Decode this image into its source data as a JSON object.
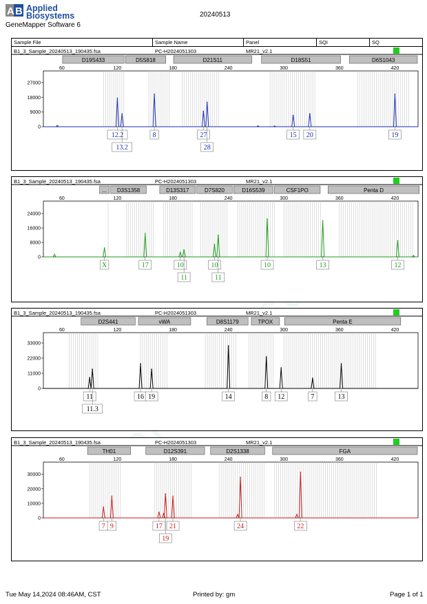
{
  "header": {
    "logo_line1": "Applied",
    "logo_line2": "Biosystems",
    "software": "GeneMapper Software 6",
    "date": "20240513",
    "columns": [
      "Sample File",
      "Sample Name",
      "Panel",
      "SQI",
      "SQ"
    ]
  },
  "footer": {
    "timestamp": "Tue May 14,2024 08:46AM, CST",
    "printed_by": "Printed by: gm",
    "page": "Page 1 of 1"
  },
  "watermark": "www.proteck.com.cn",
  "colors": {
    "blue": "#1a2fb0",
    "green": "#1c9a1c",
    "black": "#000000",
    "red": "#c81818",
    "quality": "#22cc22",
    "bins": "#c8c8c8",
    "marker_fill": "#bfbfbf"
  },
  "chart_data": [
    {
      "type": "line",
      "dye": "blue",
      "sample_file": "B1_3_Sample_20240513_190435.fsa",
      "sample_name": "PC-H2024051303",
      "panel": "MR21_v2.1",
      "xlim": [
        40,
        445
      ],
      "x_ticks": [
        60,
        120,
        180,
        240,
        300,
        360,
        420
      ],
      "ylim": [
        0,
        32000
      ],
      "y_ticks": [
        0,
        9000,
        18000,
        27000
      ],
      "markers": [
        {
          "name": "D19S433",
          "start": 60,
          "end": 128
        },
        {
          "name": "D5S818",
          "start": 128,
          "end": 173
        },
        {
          "name": "D21S11",
          "start": 180,
          "end": 266
        },
        {
          "name": "D18S51",
          "start": 275,
          "end": 362
        },
        {
          "name": "D6S1043",
          "start": 370,
          "end": 445
        }
      ],
      "bins": [
        [
          105,
          128
        ],
        [
          154,
          176
        ],
        [
          190,
          230
        ],
        [
          285,
          335
        ],
        [
          380,
          437
        ]
      ],
      "peaks": [
        {
          "x": 120,
          "height": 17500,
          "label": "12.2",
          "row": 0
        },
        {
          "x": 125,
          "height": 8000,
          "label": "13.2",
          "row": 1
        },
        {
          "x": 160,
          "height": 20000,
          "label": "8",
          "row": 0
        },
        {
          "x": 213,
          "height": 9500,
          "label": "27",
          "row": 0
        },
        {
          "x": 217,
          "height": 15000,
          "label": "28",
          "row": 1
        },
        {
          "x": 310,
          "height": 7000,
          "label": "15",
          "row": 0
        },
        {
          "x": 328,
          "height": 8000,
          "label": "20",
          "row": 0
        },
        {
          "x": 420,
          "height": 20000,
          "label": "19",
          "row": 0
        }
      ],
      "noise": [
        [
          55,
          800
        ],
        [
          272,
          600
        ],
        [
          290,
          500
        ]
      ]
    },
    {
      "type": "line",
      "dye": "green",
      "sample_file": "B1_3_Sample_20240513_190435.fsa",
      "sample_name": "PC-H2024051303",
      "panel": "MR21_v2.1",
      "xlim": [
        40,
        445
      ],
      "x_ticks": [
        60,
        120,
        180,
        240,
        300,
        360,
        420
      ],
      "ylim": [
        0,
        29000
      ],
      "y_ticks": [
        0,
        8000,
        16000,
        24000
      ],
      "markers": [
        {
          "name": "...",
          "start": 100,
          "end": 112
        },
        {
          "name": "D3S1358",
          "start": 112,
          "end": 152
        },
        {
          "name": "D13S317",
          "start": 165,
          "end": 205
        },
        {
          "name": "D7S820",
          "start": 205,
          "end": 245
        },
        {
          "name": "D16S539",
          "start": 245,
          "end": 289
        },
        {
          "name": "CSF1PO",
          "start": 289,
          "end": 340
        },
        {
          "name": "Penta D",
          "start": 347,
          "end": 447
        }
      ],
      "bins": [
        [
          110,
          112
        ],
        [
          130,
          160
        ],
        [
          170,
          202
        ],
        [
          210,
          240
        ],
        [
          250,
          290
        ],
        [
          300,
          340
        ],
        [
          360,
          440
        ]
      ],
      "peaks": [
        {
          "x": 106,
          "height": 5000,
          "label": "X",
          "row": 0
        },
        {
          "x": 150,
          "height": 13000,
          "label": "17",
          "row": 0
        },
        {
          "x": 188,
          "height": 2500,
          "label": "10",
          "row": 0
        },
        {
          "x": 192,
          "height": 4000,
          "label": "11",
          "row": 1
        },
        {
          "x": 225,
          "height": 7000,
          "label": "10",
          "row": 0
        },
        {
          "x": 229,
          "height": 12000,
          "label": "11",
          "row": 1
        },
        {
          "x": 282,
          "height": 21000,
          "label": "10",
          "row": 0
        },
        {
          "x": 342,
          "height": 20000,
          "label": "13",
          "row": 0
        },
        {
          "x": 423,
          "height": 9000,
          "label": "12",
          "row": 0
        }
      ],
      "noise": [
        [
          52,
          1500
        ],
        [
          440,
          800
        ]
      ]
    },
    {
      "type": "line",
      "dye": "black",
      "sample_file": "B1_3_Sample_20240513_190435.fsa",
      "sample_name": "PC-H2024051303",
      "panel": "MR21_v2.1",
      "xlim": [
        40,
        445
      ],
      "x_ticks": [
        60,
        120,
        180,
        240,
        300,
        360,
        420
      ],
      "ylim": [
        0,
        38000
      ],
      "y_ticks": [
        0,
        11000,
        22000,
        33000
      ],
      "markers": [
        {
          "name": "D2S441",
          "start": 80,
          "end": 140
        },
        {
          "name": "vWA",
          "start": 142,
          "end": 200
        },
        {
          "name": "D8S1179",
          "start": 216,
          "end": 262
        },
        {
          "name": "TPOX",
          "start": 264,
          "end": 296
        },
        {
          "name": "Penta E",
          "start": 300,
          "end": 427
        }
      ],
      "bins": [
        [
          68,
          100
        ],
        [
          145,
          175
        ],
        [
          215,
          250
        ],
        [
          262,
          290
        ],
        [
          300,
          400
        ]
      ],
      "peaks": [
        {
          "x": 90,
          "height": 8000,
          "label": "11",
          "row": 0
        },
        {
          "x": 93,
          "height": 14000,
          "label": "11.3",
          "row": 1
        },
        {
          "x": 145,
          "height": 18000,
          "label": "16",
          "row": 0
        },
        {
          "x": 157,
          "height": 14000,
          "label": "19",
          "row": 0
        },
        {
          "x": 240,
          "height": 31000,
          "label": "14",
          "row": 0
        },
        {
          "x": 281,
          "height": 23000,
          "label": "8",
          "row": 0
        },
        {
          "x": 297,
          "height": 15000,
          "label": "12",
          "row": 0
        },
        {
          "x": 331,
          "height": 7500,
          "label": "7",
          "row": 0
        },
        {
          "x": 362,
          "height": 18000,
          "label": "13",
          "row": 0
        }
      ],
      "noise": []
    },
    {
      "type": "line",
      "dye": "red",
      "sample_file": "B1_3_Sample_20240513_190435.fsa",
      "sample_name": "PC-H2024051303",
      "panel": "MR21_v2.1",
      "xlim": [
        40,
        445
      ],
      "x_ticks": [
        60,
        120,
        180,
        240,
        300,
        360,
        420
      ],
      "ylim": [
        0,
        36000
      ],
      "y_ticks": [
        0,
        10000,
        20000,
        30000
      ],
      "markers": [
        {
          "name": "TH01",
          "start": 87,
          "end": 135
        },
        {
          "name": "D12S391",
          "start": 150,
          "end": 215
        },
        {
          "name": "D2S1338",
          "start": 220,
          "end": 280
        },
        {
          "name": "FGA",
          "start": 287,
          "end": 445
        }
      ],
      "bins": [
        [
          90,
          125
        ],
        [
          160,
          200
        ],
        [
          230,
          280
        ],
        [
          290,
          400
        ]
      ],
      "peaks": [
        {
          "x": 105,
          "height": 7500,
          "label": "7",
          "row": 0
        },
        {
          "x": 114,
          "height": 15000,
          "label": "9",
          "row": 0
        },
        {
          "x": 165,
          "height": 4000,
          "label": "17",
          "row": 0
        },
        {
          "x": 172,
          "height": 16500,
          "label": "19",
          "row": 1
        },
        {
          "x": 180,
          "height": 15000,
          "label": "21",
          "row": 0
        },
        {
          "x": 253,
          "height": 28000,
          "label": "24",
          "row": 0
        },
        {
          "x": 318,
          "height": 31500,
          "label": "22",
          "row": 0
        }
      ],
      "noise": [
        [
          170,
          3000
        ],
        [
          250,
          2500
        ],
        [
          314,
          2500
        ]
      ]
    }
  ]
}
